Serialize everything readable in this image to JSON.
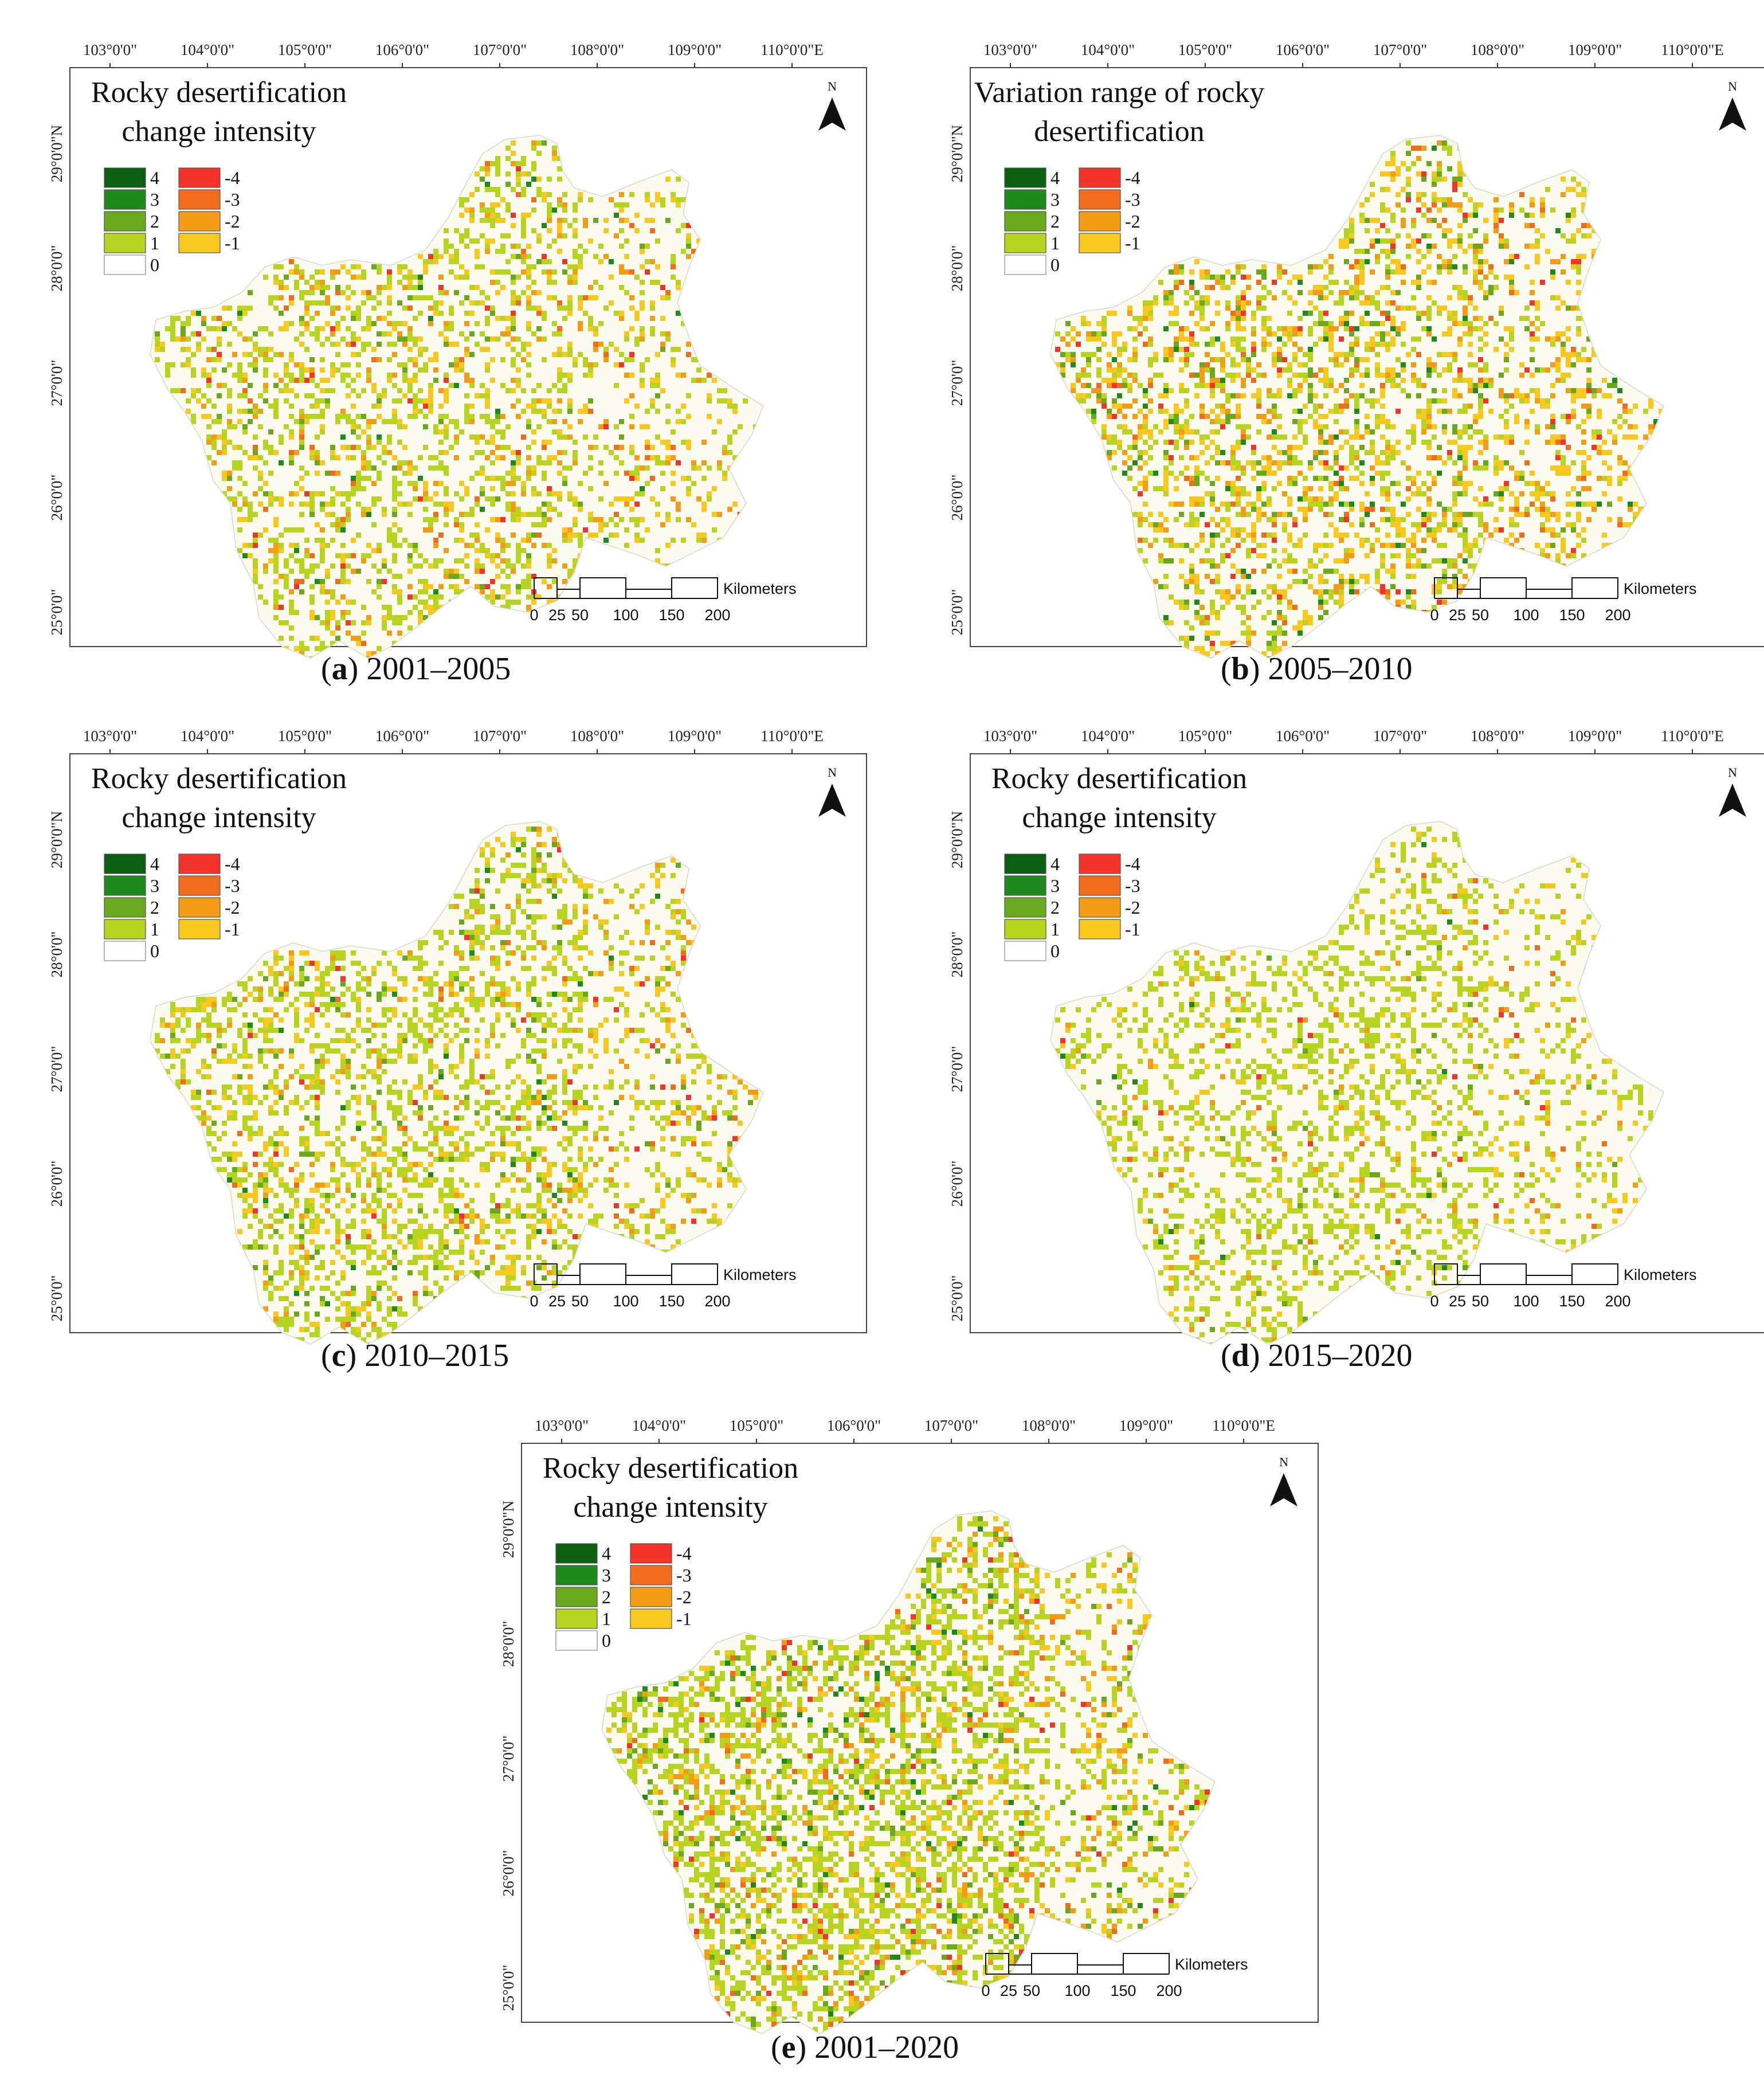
{
  "lon_ticks": [
    "103°0'0\"",
    "104°0'0\"",
    "105°0'0\"",
    "106°0'0\"",
    "107°0'0\"",
    "108°0'0\"",
    "109°0'0\"",
    "110°0'0\"E"
  ],
  "lat_ticks": [
    "29°0'0\"N",
    "28°0'0\"",
    "27°0'0\"",
    "26°0'0\"",
    "25°0'0\""
  ],
  "north_label": "N",
  "scale": {
    "ticks": [
      "0",
      "25",
      "50",
      "100",
      "150",
      "200"
    ],
    "unit": "Kilometers"
  },
  "legend": {
    "positive": [
      "4",
      "3",
      "2",
      "1"
    ],
    "negative": [
      "-4",
      "-3",
      "-2",
      "-1"
    ],
    "zero": "0",
    "colors": {
      "4": "#0b5e12",
      "3": "#1f8a1c",
      "2": "#6aa81e",
      "1": "#b6d420",
      "-4": "#f4332a",
      "-3": "#f26c1e",
      "-2": "#f59c16",
      "-1": "#f8c81e",
      "0": "#ffffff"
    }
  },
  "panels": [
    {
      "letter": "a",
      "period": "2001–2005",
      "title_line1": "Rocky desertification",
      "title_line2": "change intensity",
      "mix": [
        0.18,
        0.07,
        0.02,
        0.05
      ]
    },
    {
      "letter": "b",
      "period": "2005–2010",
      "title_line1": "Variation range of rocky",
      "title_line2": "desertification",
      "mix": [
        0.12,
        0.12,
        0.05,
        0.08
      ]
    },
    {
      "letter": "c",
      "period": "2010–2015",
      "title_line1": "Rocky desertification",
      "title_line2": "change intensity",
      "mix": [
        0.22,
        0.08,
        0.03,
        0.04
      ]
    },
    {
      "letter": "d",
      "period": "2015–2020",
      "title_line1": "Rocky desertification",
      "title_line2": "change intensity",
      "mix": [
        0.22,
        0.04,
        0.01,
        0.02
      ]
    },
    {
      "letter": "e",
      "period": "2001–2020",
      "title_line1": "Rocky desertification",
      "title_line2": "change intensity",
      "mix": [
        0.28,
        0.06,
        0.05,
        0.06
      ]
    }
  ]
}
